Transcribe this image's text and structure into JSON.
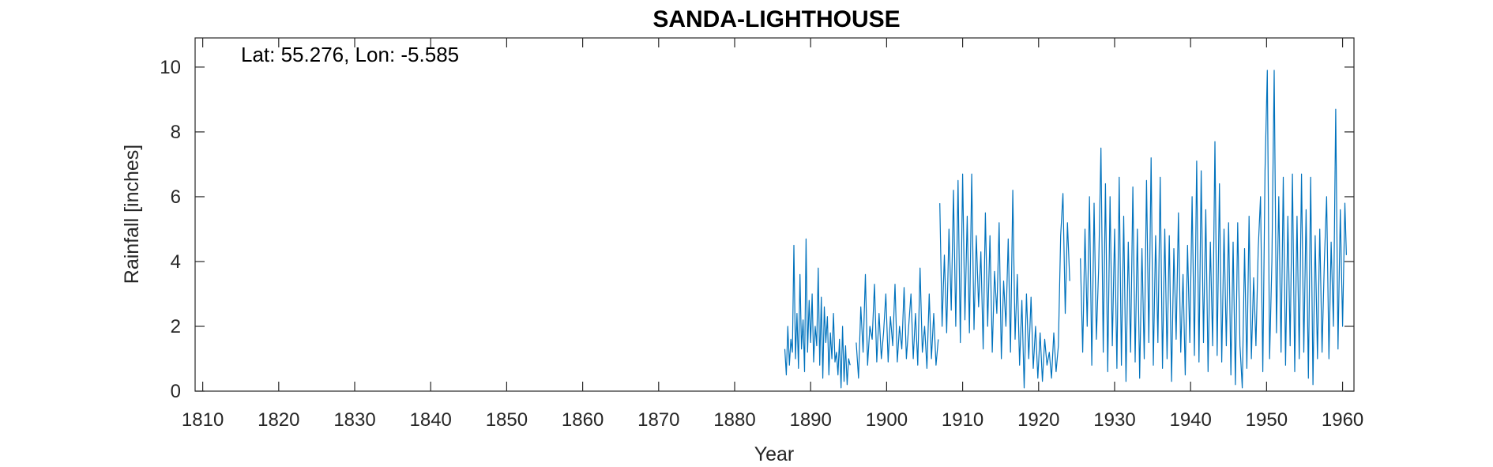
{
  "chart_data": {
    "type": "line",
    "title": "SANDA-LIGHTHOUSE",
    "annotation": "Lat: 55.276, Lon: -5.585",
    "xlabel": "Year",
    "ylabel": "Rainfall [inches]",
    "xlim": [
      1809,
      1961.5
    ],
    "ylim": [
      0,
      10.9
    ],
    "xticks": [
      1810,
      1820,
      1830,
      1840,
      1850,
      1860,
      1870,
      1880,
      1890,
      1900,
      1910,
      1920,
      1930,
      1940,
      1950,
      1960
    ],
    "yticks": [
      0,
      2,
      4,
      6,
      8,
      10
    ],
    "grid": false,
    "series": [
      {
        "color": "#0072bd",
        "segments": [
          {
            "x": [
              1886.6,
              1886.8,
              1887.0,
              1887.2,
              1887.4,
              1887.6,
              1887.8,
              1888.0,
              1888.2,
              1888.4,
              1888.6,
              1888.8,
              1889.0,
              1889.2,
              1889.4,
              1889.6,
              1889.8,
              1890.0,
              1890.2,
              1890.4,
              1890.6,
              1890.8,
              1891.0,
              1891.2,
              1891.4,
              1891.6,
              1891.8,
              1892.0,
              1892.2,
              1892.4,
              1892.6,
              1892.8,
              1893.0,
              1893.2,
              1893.4,
              1893.6,
              1893.8,
              1894.0,
              1894.2,
              1894.4,
              1894.6,
              1894.8,
              1895.0,
              1895.2
            ],
            "y": [
              1.3,
              0.5,
              2.0,
              0.8,
              1.6,
              1.2,
              4.5,
              1.0,
              2.4,
              0.7,
              3.6,
              1.3,
              2.2,
              0.6,
              4.7,
              1.2,
              2.8,
              1.5,
              3.0,
              0.9,
              2.0,
              1.4,
              3.8,
              0.8,
              2.9,
              0.4,
              2.6,
              1.5,
              2.3,
              0.5,
              1.8,
              1.0,
              2.4,
              0.9,
              1.2,
              0.5,
              1.6,
              0.1,
              2.0,
              0.3,
              1.4,
              0.2,
              1.0,
              0.8
            ]
          },
          {
            "x": [
              1896.0,
              1896.3,
              1896.6,
              1896.9,
              1897.2,
              1897.5,
              1897.8,
              1898.1,
              1898.4,
              1898.7,
              1899.0,
              1899.3,
              1899.6,
              1899.9,
              1900.2,
              1900.5,
              1900.8,
              1901.1,
              1901.4,
              1901.7,
              1902.0,
              1902.3,
              1902.6,
              1902.9,
              1903.2,
              1903.5,
              1903.8,
              1904.1,
              1904.4,
              1904.7,
              1905.0,
              1905.3,
              1905.6,
              1905.9,
              1906.2,
              1906.5,
              1906.8
            ],
            "y": [
              1.5,
              0.4,
              2.6,
              1.2,
              3.6,
              0.8,
              2.0,
              1.6,
              3.3,
              0.9,
              2.4,
              1.0,
              1.8,
              3.0,
              0.9,
              2.3,
              1.4,
              3.3,
              0.9,
              2.0,
              1.3,
              3.2,
              1.0,
              2.0,
              3.0,
              1.0,
              2.4,
              0.8,
              3.8,
              1.2,
              2.0,
              0.7,
              3.0,
              1.0,
              2.4,
              0.8,
              1.6
            ]
          },
          {
            "x": [
              1907.0,
              1907.3,
              1907.6,
              1907.9,
              1908.2,
              1908.5,
              1908.8,
              1909.1,
              1909.4,
              1909.7,
              1910.0,
              1910.3,
              1910.6,
              1910.9,
              1911.2,
              1911.5,
              1911.8,
              1912.1,
              1912.4,
              1912.7,
              1913.0,
              1913.3,
              1913.6,
              1913.9,
              1914.2,
              1914.5,
              1914.8,
              1915.1,
              1915.4,
              1915.7,
              1916.0,
              1916.3,
              1916.6,
              1916.9,
              1917.2,
              1917.5,
              1917.8,
              1918.1,
              1918.4,
              1918.7,
              1919.0,
              1919.3,
              1919.6,
              1919.9,
              1920.2,
              1920.5,
              1920.8,
              1921.1,
              1921.4,
              1921.7,
              1922.0,
              1922.3,
              1922.6,
              1922.9,
              1923.2,
              1923.5,
              1923.8,
              1924.1
            ],
            "y": [
              5.8,
              2.0,
              4.2,
              1.8,
              5.0,
              2.5,
              6.2,
              2.0,
              6.5,
              1.5,
              6.7,
              2.2,
              5.4,
              1.8,
              6.7,
              1.9,
              4.8,
              2.6,
              4.3,
              1.3,
              5.5,
              2.0,
              4.8,
              1.2,
              3.7,
              2.4,
              5.2,
              1.0,
              3.4,
              2.0,
              4.7,
              1.2,
              6.2,
              1.6,
              3.6,
              0.8,
              2.8,
              0.1,
              3.0,
              1.0,
              2.9,
              0.7,
              2.0,
              0.4,
              1.8,
              0.3,
              1.6,
              0.8,
              1.2,
              0.4,
              1.8,
              0.6,
              1.4,
              4.8,
              6.1,
              2.4,
              5.2,
              3.4
            ]
          },
          {
            "x": [
              1925.5,
              1925.8,
              1926.1,
              1926.4,
              1926.7,
              1927.0,
              1927.3,
              1927.6,
              1927.9,
              1928.2,
              1928.5,
              1928.8,
              1929.1,
              1929.4,
              1929.7,
              1930.0,
              1930.3,
              1930.6,
              1930.9,
              1931.2,
              1931.5,
              1931.8,
              1932.1,
              1932.4,
              1932.7,
              1933.0,
              1933.3,
              1933.6,
              1933.9,
              1934.2,
              1934.5,
              1934.8,
              1935.1,
              1935.4,
              1935.7,
              1936.0,
              1936.3,
              1936.6,
              1936.9,
              1937.2,
              1937.5,
              1937.8,
              1938.1,
              1938.4,
              1938.7,
              1939.0,
              1939.3,
              1939.6,
              1939.9,
              1940.2,
              1940.5,
              1940.8,
              1941.1,
              1941.4,
              1941.7,
              1942.0,
              1942.3,
              1942.6,
              1942.9,
              1943.2,
              1943.5,
              1943.8,
              1944.1,
              1944.4,
              1944.7,
              1945.0,
              1945.3,
              1945.6,
              1945.9,
              1946.2,
              1946.5,
              1946.8,
              1947.1,
              1947.4,
              1947.7,
              1948.0,
              1948.3,
              1948.6,
              1948.9,
              1949.2,
              1949.5,
              1949.8,
              1950.1,
              1950.4,
              1950.7,
              1951.0,
              1951.3,
              1951.6,
              1951.9,
              1952.2,
              1952.5,
              1952.8,
              1953.1,
              1953.4,
              1953.7,
              1954.0,
              1954.3,
              1954.6,
              1954.9,
              1955.2,
              1955.5,
              1955.8,
              1956.1,
              1956.4,
              1956.7,
              1957.0,
              1957.3,
              1957.6,
              1957.9,
              1958.2,
              1958.5,
              1958.8,
              1959.1,
              1959.4,
              1959.7,
              1960.0,
              1960.3,
              1960.5
            ],
            "y": [
              4.1,
              1.2,
              5.0,
              2.0,
              6.0,
              0.8,
              5.8,
              1.6,
              3.8,
              7.5,
              1.2,
              6.4,
              0.6,
              6.0,
              1.4,
              5.0,
              0.7,
              6.6,
              0.8,
              5.4,
              0.3,
              4.6,
              1.2,
              6.3,
              0.9,
              5.0,
              0.4,
              4.4,
              1.0,
              6.5,
              1.5,
              7.2,
              0.8,
              4.8,
              1.5,
              6.6,
              0.7,
              5.0,
              1.0,
              4.8,
              0.3,
              4.4,
              1.6,
              5.5,
              1.2,
              3.6,
              0.5,
              4.5,
              1.5,
              6.0,
              1.1,
              7.1,
              0.9,
              6.8,
              1.5,
              5.6,
              0.6,
              4.6,
              1.4,
              7.7,
              1.1,
              6.4,
              0.9,
              5.0,
              1.4,
              5.2,
              0.5,
              4.6,
              0.2,
              5.2,
              1.4,
              0.1,
              4.4,
              0.7,
              5.4,
              1.0,
              3.5,
              1.4,
              4.4,
              6.0,
              0.6,
              6.8,
              9.9,
              1.0,
              4.0,
              9.9,
              1.8,
              6.0,
              1.2,
              6.6,
              0.8,
              5.4,
              1.4,
              6.7,
              0.6,
              5.4,
              1.0,
              6.7,
              1.2,
              5.6,
              0.4,
              6.6,
              0.2,
              4.8,
              1.0,
              5.0,
              1.2,
              4.0,
              6.0,
              1.0,
              4.6,
              2.0,
              8.7,
              1.3,
              5.6,
              2.0,
              5.8,
              4.2
            ]
          }
        ]
      }
    ]
  }
}
